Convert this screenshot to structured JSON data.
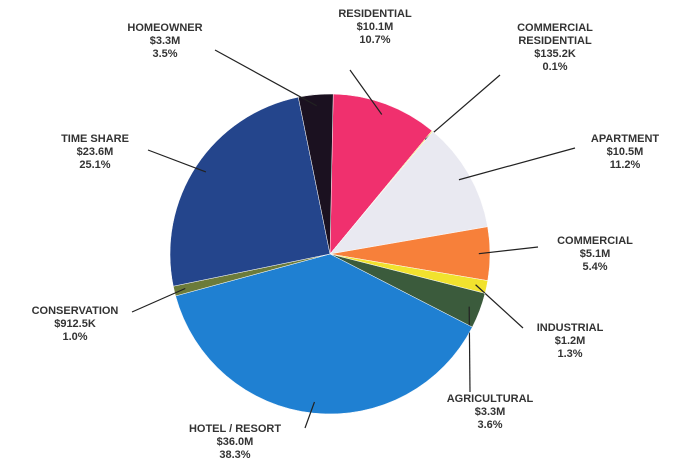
{
  "chart_data": {
    "type": "pie",
    "categories": [
      "RESIDENTIAL",
      "COMMERCIAL RESIDENTIAL",
      "APARTMENT",
      "COMMERCIAL",
      "INDUSTRIAL",
      "AGRICULTURAL",
      "HOTEL / RESORT",
      "CONSERVATION",
      "TIME SHARE",
      "HOMEOWNER"
    ],
    "amounts": [
      "$10.1M",
      "$135.2K",
      "$10.5M",
      "$5.1M",
      "$1.2M",
      "$3.3M",
      "$36.0M",
      "$912.5K",
      "$23.6M",
      "$3.3M"
    ],
    "values": [
      10.7,
      0.1,
      11.2,
      5.4,
      1.3,
      3.6,
      38.3,
      1.0,
      25.1,
      3.5
    ],
    "value_labels": [
      "10.7%",
      "0.1%",
      "11.2%",
      "5.4%",
      "1.3%",
      "3.6%",
      "38.3%",
      "1.0%",
      "25.1%",
      "3.5%"
    ],
    "colors": [
      "#f0306e",
      "#f2e440",
      "#e9e9f1",
      "#f7803a",
      "#f1e22e",
      "#3b5b3c",
      "#1f80d2",
      "#6c7b3a",
      "#24458c",
      "#1b1120"
    ]
  }
}
